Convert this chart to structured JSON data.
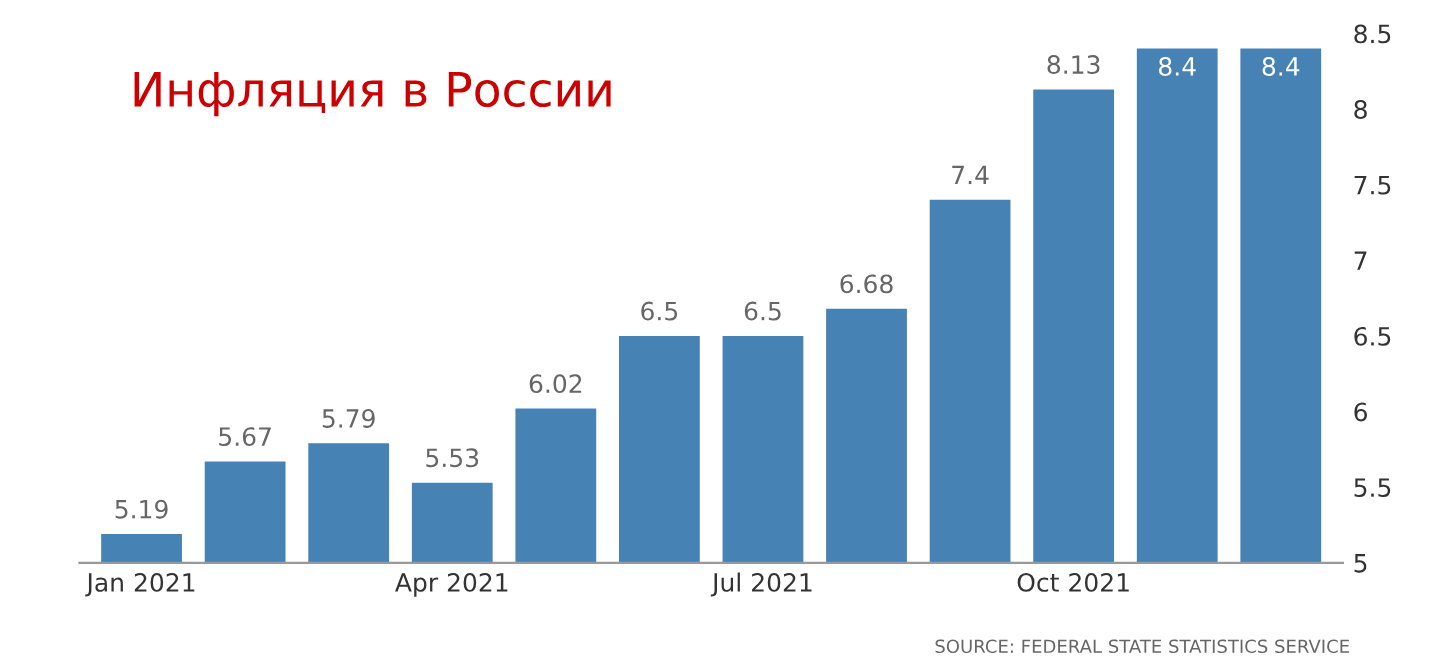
{
  "chart_data": {
    "type": "bar",
    "title": "Инфляция в России",
    "categories": [
      "Jan 2021",
      null,
      null,
      "Apr 2021",
      null,
      null,
      "Jul 2021",
      null,
      null,
      "Oct 2021",
      null,
      null
    ],
    "values": [
      5.19,
      5.67,
      5.79,
      5.53,
      6.02,
      6.5,
      6.5,
      6.68,
      7.4,
      8.13,
      8.4,
      8.4
    ],
    "color": "#4682b4",
    "ylim": [
      5,
      8.5
    ],
    "yticks": [
      5,
      5.5,
      6,
      6.5,
      7,
      7.5,
      8,
      8.5
    ],
    "data_labels": true,
    "grid": false,
    "legend": false,
    "annotations": [
      "SOURCE: FEDERAL STATE STATISTICS SERVICE"
    ]
  }
}
